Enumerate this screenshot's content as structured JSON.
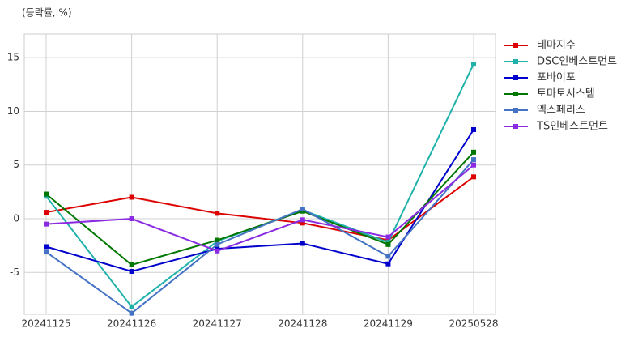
{
  "chart_data": {
    "type": "line",
    "subtitle": "(등락률, %)",
    "categories": [
      "20241125",
      "20241126",
      "20241127",
      "20241128",
      "20241129",
      "20250528"
    ],
    "series": [
      {
        "name": "테마지수",
        "color": "#dd0000",
        "values": [
          0.6,
          2.0,
          0.5,
          -0.4,
          -2.0,
          3.9
        ]
      },
      {
        "name": "DSC인베스트먼트",
        "color": "#20b2aa",
        "values": [
          2.1,
          -8.2,
          -2.1,
          0.8,
          -2.2,
          14.4
        ]
      },
      {
        "name": "포바이포",
        "color": "#0000cc",
        "values": [
          -2.6,
          -4.9,
          -2.8,
          -2.3,
          -4.2,
          8.3
        ]
      },
      {
        "name": "토마토시스템",
        "color": "#007700",
        "values": [
          2.3,
          -4.3,
          -2.0,
          0.7,
          -2.4,
          6.2
        ]
      },
      {
        "name": "엑스페리스",
        "color": "#4472c4",
        "values": [
          -3.1,
          -8.8,
          -2.4,
          0.9,
          -3.5,
          5.5
        ]
      },
      {
        "name": "TS인베스트먼트",
        "color": "#8a2be2",
        "values": [
          -0.5,
          0.0,
          -3.0,
          -0.1,
          -1.7,
          5.0
        ]
      }
    ],
    "ylim": [
      -8.9,
      17.2
    ],
    "yticks": [
      -5,
      0,
      5,
      10,
      15
    ],
    "grid": true,
    "legend": "right"
  }
}
